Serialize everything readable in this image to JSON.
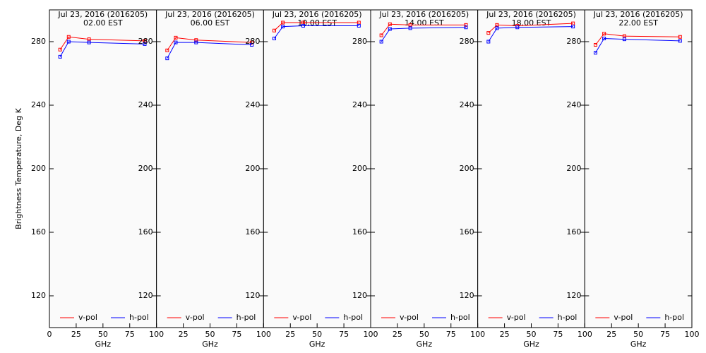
{
  "chart_data": [
    {
      "type": "line",
      "title": "Jul 23, 2016 (2016205)",
      "subtitle": "02.00 EST",
      "xlabel": "GHz",
      "ylabel": "Brightness Temperature, Deg K",
      "x": [
        10,
        18,
        37,
        89
      ],
      "xlim": [
        0,
        100
      ],
      "xticks": [
        0,
        25,
        50,
        75,
        100
      ],
      "ylim": [
        100,
        300
      ],
      "yticks": [
        120,
        160,
        200,
        240,
        280
      ],
      "series": [
        {
          "name": "v-pol",
          "color": "#ff0000",
          "values": [
            275,
            283,
            281.5,
            280.5
          ]
        },
        {
          "name": "h-pol",
          "color": "#0000ff",
          "values": [
            270.5,
            280,
            279.5,
            278.5
          ]
        }
      ]
    },
    {
      "type": "line",
      "title": "Jul 23, 2016 (2016205)",
      "subtitle": "06.00 EST",
      "xlabel": "GHz",
      "x": [
        10,
        18,
        37,
        89
      ],
      "xlim": [
        0,
        100
      ],
      "xticks": [
        25,
        50,
        75,
        100
      ],
      "ylim": [
        100,
        300
      ],
      "yticks": [
        120,
        160,
        200,
        240,
        280
      ],
      "series": [
        {
          "name": "v-pol",
          "color": "#ff0000",
          "values": [
            274.5,
            282.5,
            281,
            279.5
          ]
        },
        {
          "name": "h-pol",
          "color": "#0000ff",
          "values": [
            269.5,
            279.5,
            279.5,
            278
          ]
        }
      ]
    },
    {
      "type": "line",
      "title": "Jul 23, 2016 (2016205)",
      "subtitle": "10.00 EST",
      "xlabel": "GHz",
      "x": [
        10,
        18,
        37,
        89
      ],
      "xlim": [
        0,
        100
      ],
      "xticks": [
        25,
        50,
        75,
        100
      ],
      "ylim": [
        100,
        300
      ],
      "yticks": [
        120,
        160,
        200,
        240,
        280
      ],
      "series": [
        {
          "name": "v-pol",
          "color": "#ff0000",
          "values": [
            287,
            292,
            292,
            292
          ]
        },
        {
          "name": "h-pol",
          "color": "#0000ff",
          "values": [
            282,
            289.5,
            290,
            290
          ]
        }
      ]
    },
    {
      "type": "line",
      "title": "Jul 23, 2016 (2016205)",
      "subtitle": "14.00 EST",
      "xlabel": "GHz",
      "x": [
        10,
        18,
        37,
        89
      ],
      "xlim": [
        0,
        100
      ],
      "xticks": [
        25,
        50,
        75,
        100
      ],
      "ylim": [
        100,
        300
      ],
      "yticks": [
        120,
        160,
        200,
        240,
        280
      ],
      "series": [
        {
          "name": "v-pol",
          "color": "#ff0000",
          "values": [
            284,
            291,
            290.5,
            290.5
          ]
        },
        {
          "name": "h-pol",
          "color": "#0000ff",
          "values": [
            280,
            288,
            288.5,
            289
          ]
        }
      ]
    },
    {
      "type": "line",
      "title": "Jul 23, 2016 (2016205)",
      "subtitle": "18.00 EST",
      "xlabel": "GHz",
      "x": [
        10,
        18,
        37,
        89
      ],
      "xlim": [
        0,
        100
      ],
      "xticks": [
        25,
        50,
        75,
        100
      ],
      "ylim": [
        100,
        300
      ],
      "yticks": [
        120,
        160,
        200,
        240,
        280
      ],
      "series": [
        {
          "name": "v-pol",
          "color": "#ff0000",
          "values": [
            285.5,
            290.5,
            290,
            291.5
          ]
        },
        {
          "name": "h-pol",
          "color": "#0000ff",
          "values": [
            280,
            288.5,
            289,
            289.5
          ]
        }
      ]
    },
    {
      "type": "line",
      "title": "Jul 23, 2016 (2016205)",
      "subtitle": "22.00 EST",
      "xlabel": "GHz",
      "x": [
        10,
        18,
        37,
        89
      ],
      "xlim": [
        0,
        100
      ],
      "xticks": [
        25,
        50,
        75,
        100
      ],
      "ylim": [
        100,
        300
      ],
      "yticks": [
        120,
        160,
        200,
        240,
        280
      ],
      "series": [
        {
          "name": "v-pol",
          "color": "#ff0000",
          "values": [
            278,
            285,
            283.5,
            283
          ]
        },
        {
          "name": "h-pol",
          "color": "#0000ff",
          "values": [
            273,
            282,
            281.5,
            280.5
          ]
        }
      ]
    }
  ]
}
